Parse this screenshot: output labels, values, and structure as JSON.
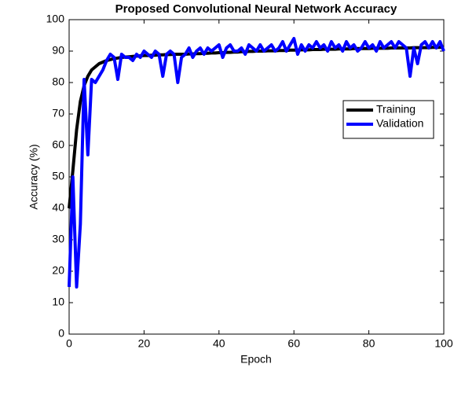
{
  "chart_data": {
    "type": "line",
    "title": "Proposed Convolutional Neural Network Accuracy",
    "x_label": "Epoch",
    "y_label": "Accuracy (%)",
    "x": [
      0,
      1,
      2,
      3,
      4,
      5,
      6,
      7,
      8,
      9,
      10,
      11,
      12,
      13,
      14,
      15,
      16,
      17,
      18,
      19,
      20,
      21,
      22,
      23,
      24,
      25,
      26,
      27,
      28,
      29,
      30,
      31,
      32,
      33,
      34,
      35,
      36,
      37,
      38,
      39,
      40,
      41,
      42,
      43,
      44,
      45,
      46,
      47,
      48,
      49,
      50,
      51,
      52,
      53,
      54,
      55,
      56,
      57,
      58,
      59,
      60,
      61,
      62,
      63,
      64,
      65,
      66,
      67,
      68,
      69,
      70,
      71,
      72,
      73,
      74,
      75,
      76,
      77,
      78,
      79,
      80,
      81,
      82,
      83,
      84,
      85,
      86,
      87,
      88,
      89,
      90,
      91,
      92,
      93,
      94,
      95,
      96,
      97,
      98,
      99,
      100
    ],
    "series": [
      {
        "name": "Training",
        "color": "#000000",
        "values": [
          40,
          52,
          65,
          74,
          79,
          82,
          84,
          85,
          86,
          86.5,
          87,
          87.3,
          87.6,
          87.8,
          88,
          88.1,
          88.2,
          88.3,
          88.4,
          88.5,
          88.6,
          88.6,
          88.7,
          88.7,
          88.8,
          88.8,
          88.9,
          88.9,
          89,
          89,
          89,
          89,
          89.1,
          89.1,
          89.2,
          89.2,
          89.3,
          89.3,
          89.4,
          89.4,
          89.5,
          89.5,
          89.6,
          89.6,
          89.7,
          89.7,
          89.8,
          89.8,
          89.9,
          89.9,
          90,
          90,
          90,
          90.1,
          90.1,
          90.1,
          90.2,
          90.2,
          90.2,
          90.3,
          90.3,
          90.3,
          90.4,
          90.4,
          90.4,
          90.5,
          90.5,
          90.5,
          90.6,
          90.6,
          90.6,
          90.6,
          90.7,
          90.7,
          90.7,
          90.7,
          90.8,
          90.8,
          90.8,
          90.8,
          90.8,
          90.9,
          90.9,
          90.9,
          90.9,
          90.9,
          91,
          91,
          91,
          91,
          91,
          91,
          91.1,
          91.1,
          91.1,
          91.1,
          91.1,
          91.2,
          91.2,
          91.2,
          91.2
        ]
      },
      {
        "name": "Validation",
        "color": "#0000ff",
        "values": [
          15,
          50,
          15,
          35,
          81,
          57,
          81,
          80,
          82,
          84,
          87,
          89,
          88,
          81,
          89,
          88,
          88,
          87,
          89,
          88,
          90,
          89,
          88,
          90,
          89,
          82,
          89,
          90,
          89,
          80,
          88,
          89,
          91,
          88,
          90,
          91,
          89,
          91,
          90,
          91,
          92,
          88,
          91,
          92,
          90,
          90,
          91,
          89,
          92,
          91,
          90,
          92,
          90,
          91,
          92,
          90,
          91,
          93,
          90,
          92,
          94,
          89,
          92,
          90,
          92,
          91,
          93,
          91,
          92,
          90,
          93,
          91,
          92,
          90,
          93,
          91,
          92,
          90,
          91,
          93,
          91,
          92,
          90,
          93,
          91,
          92,
          93,
          91,
          93,
          92,
          91,
          82,
          91,
          86,
          92,
          93,
          91,
          93,
          91,
          93,
          90
        ]
      }
    ],
    "xlim": [
      0,
      100
    ],
    "ylim": [
      0,
      100
    ],
    "xticks": [
      0,
      20,
      40,
      60,
      80,
      100
    ],
    "yticks": [
      0,
      10,
      20,
      30,
      40,
      50,
      60,
      70,
      80,
      90,
      100
    ],
    "legend": "east",
    "grid": false
  }
}
